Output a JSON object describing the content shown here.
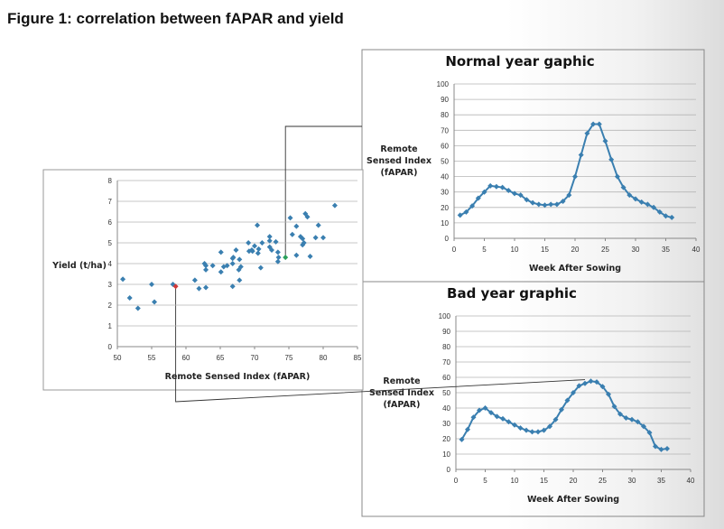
{
  "figure_title": "Figure 1: correlation between fAPAR and yield",
  "chart_data": [
    {
      "type": "scatter",
      "title": "",
      "xlabel": "Remote Sensed Index (fAPAR)",
      "ylabel": "Yield (t/ha)",
      "xlim": [
        50,
        85
      ],
      "ylim": [
        0,
        8
      ],
      "xticks": [
        50,
        55,
        60,
        65,
        70,
        75,
        80,
        85
      ],
      "yticks": [
        0,
        1,
        2,
        3,
        4,
        5,
        6,
        7,
        8
      ],
      "grid": true,
      "color": "#3a7fb0",
      "points": [
        [
          50.8,
          3.25
        ],
        [
          51.8,
          2.35
        ],
        [
          53,
          1.85
        ],
        [
          55,
          3.0
        ],
        [
          55.4,
          2.15
        ],
        [
          58.1,
          3.0
        ],
        [
          61.3,
          3.2
        ],
        [
          61.9,
          2.8
        ],
        [
          62.7,
          4.0
        ],
        [
          62.9,
          3.7
        ],
        [
          62.9,
          2.85
        ],
        [
          62.9,
          3.9
        ],
        [
          63.9,
          3.9
        ],
        [
          65.1,
          3.6
        ],
        [
          65.1,
          4.55
        ],
        [
          65.5,
          3.85
        ],
        [
          66,
          3.9
        ],
        [
          66.8,
          4.0
        ],
        [
          66.8,
          4.25
        ],
        [
          66.9,
          4.3
        ],
        [
          66.8,
          2.9
        ],
        [
          67.3,
          4.65
        ],
        [
          67.7,
          3.7
        ],
        [
          67.8,
          4.2
        ],
        [
          67.8,
          3.2
        ],
        [
          68,
          3.85
        ],
        [
          69.1,
          5.0
        ],
        [
          69.2,
          4.6
        ],
        [
          69.6,
          4.65
        ],
        [
          69.7,
          4.6
        ],
        [
          70,
          4.85
        ],
        [
          70.4,
          5.85
        ],
        [
          70.5,
          4.5
        ],
        [
          70.6,
          4.7
        ],
        [
          70.9,
          3.8
        ],
        [
          71.1,
          5.0
        ],
        [
          72.2,
          5.3
        ],
        [
          72.2,
          4.8
        ],
        [
          72.2,
          5.1
        ],
        [
          72.5,
          4.65
        ],
        [
          73.1,
          5.05
        ],
        [
          73.4,
          4.1
        ],
        [
          73.4,
          4.55
        ],
        [
          73.5,
          4.3
        ],
        [
          75.2,
          6.2
        ],
        [
          75.5,
          5.4
        ],
        [
          76.1,
          5.8
        ],
        [
          76.1,
          4.4
        ],
        [
          76.7,
          5.3
        ],
        [
          77,
          4.9
        ],
        [
          77.2,
          5.0
        ],
        [
          77,
          5.2
        ],
        [
          77.4,
          6.4
        ],
        [
          77.7,
          6.25
        ],
        [
          78.1,
          4.35
        ],
        [
          78.9,
          5.25
        ],
        [
          79.3,
          5.85
        ],
        [
          80,
          5.25
        ],
        [
          81.7,
          6.8
        ]
      ],
      "highlighted_points": [
        {
          "x": 74.5,
          "y": 4.3,
          "color": "#2aa05a"
        },
        {
          "x": 58.5,
          "y": 2.9,
          "color": "#d03a3a"
        }
      ]
    },
    {
      "type": "line",
      "title": "Normal year gaphic",
      "xlabel": "Week After Sowing",
      "ylabel": "Remote Sensed Index (fAPAR)",
      "xlim": [
        0,
        40
      ],
      "ylim": [
        0,
        100
      ],
      "xticks": [
        0,
        5,
        10,
        15,
        20,
        25,
        30,
        35,
        40
      ],
      "yticks": [
        0,
        10,
        20,
        30,
        40,
        50,
        60,
        70,
        80,
        90,
        100
      ],
      "grid": true,
      "color": "#3a7fb0",
      "x": [
        1,
        2,
        3,
        4,
        5,
        6,
        7,
        8,
        9,
        10,
        11,
        12,
        13,
        14,
        15,
        16,
        17,
        18,
        19,
        20,
        21,
        22,
        23,
        24,
        25,
        26,
        27,
        28,
        29,
        30,
        31,
        32,
        33,
        34,
        35,
        36
      ],
      "values": [
        15,
        17,
        21,
        26,
        30,
        34,
        33.5,
        33,
        31,
        29,
        28,
        25,
        23,
        22,
        21.5,
        22,
        22,
        24,
        28,
        40,
        54,
        68,
        74,
        74,
        63,
        51,
        40,
        33,
        28,
        25.5,
        23.5,
        22,
        20,
        17,
        14.5,
        13.5
      ]
    },
    {
      "type": "line",
      "title": "Bad year graphic",
      "xlabel": "Week After Sowing",
      "ylabel": "Remote Sensed Index (fAPAR)",
      "xlim": [
        0,
        40
      ],
      "ylim": [
        0,
        100
      ],
      "xticks": [
        0,
        5,
        10,
        15,
        20,
        25,
        30,
        35,
        40
      ],
      "yticks": [
        0,
        10,
        20,
        30,
        40,
        50,
        60,
        70,
        80,
        90,
        100
      ],
      "grid": true,
      "color": "#3a7fb0",
      "x": [
        1,
        2,
        3,
        4,
        5,
        6,
        7,
        8,
        9,
        10,
        11,
        12,
        13,
        14,
        15,
        16,
        17,
        18,
        19,
        20,
        21,
        22,
        23,
        24,
        25,
        26,
        27,
        28,
        29,
        30,
        31,
        32,
        33,
        34,
        35,
        36
      ],
      "values": [
        19.5,
        26,
        34,
        38.5,
        40,
        37,
        34.5,
        33,
        31,
        29,
        27,
        25.5,
        24.5,
        24.5,
        25.5,
        28,
        32.5,
        39,
        45,
        50,
        54.5,
        56,
        57.5,
        57,
        54,
        49,
        41,
        36,
        33.5,
        32.5,
        31,
        28,
        24,
        15,
        13,
        13.5
      ]
    }
  ]
}
